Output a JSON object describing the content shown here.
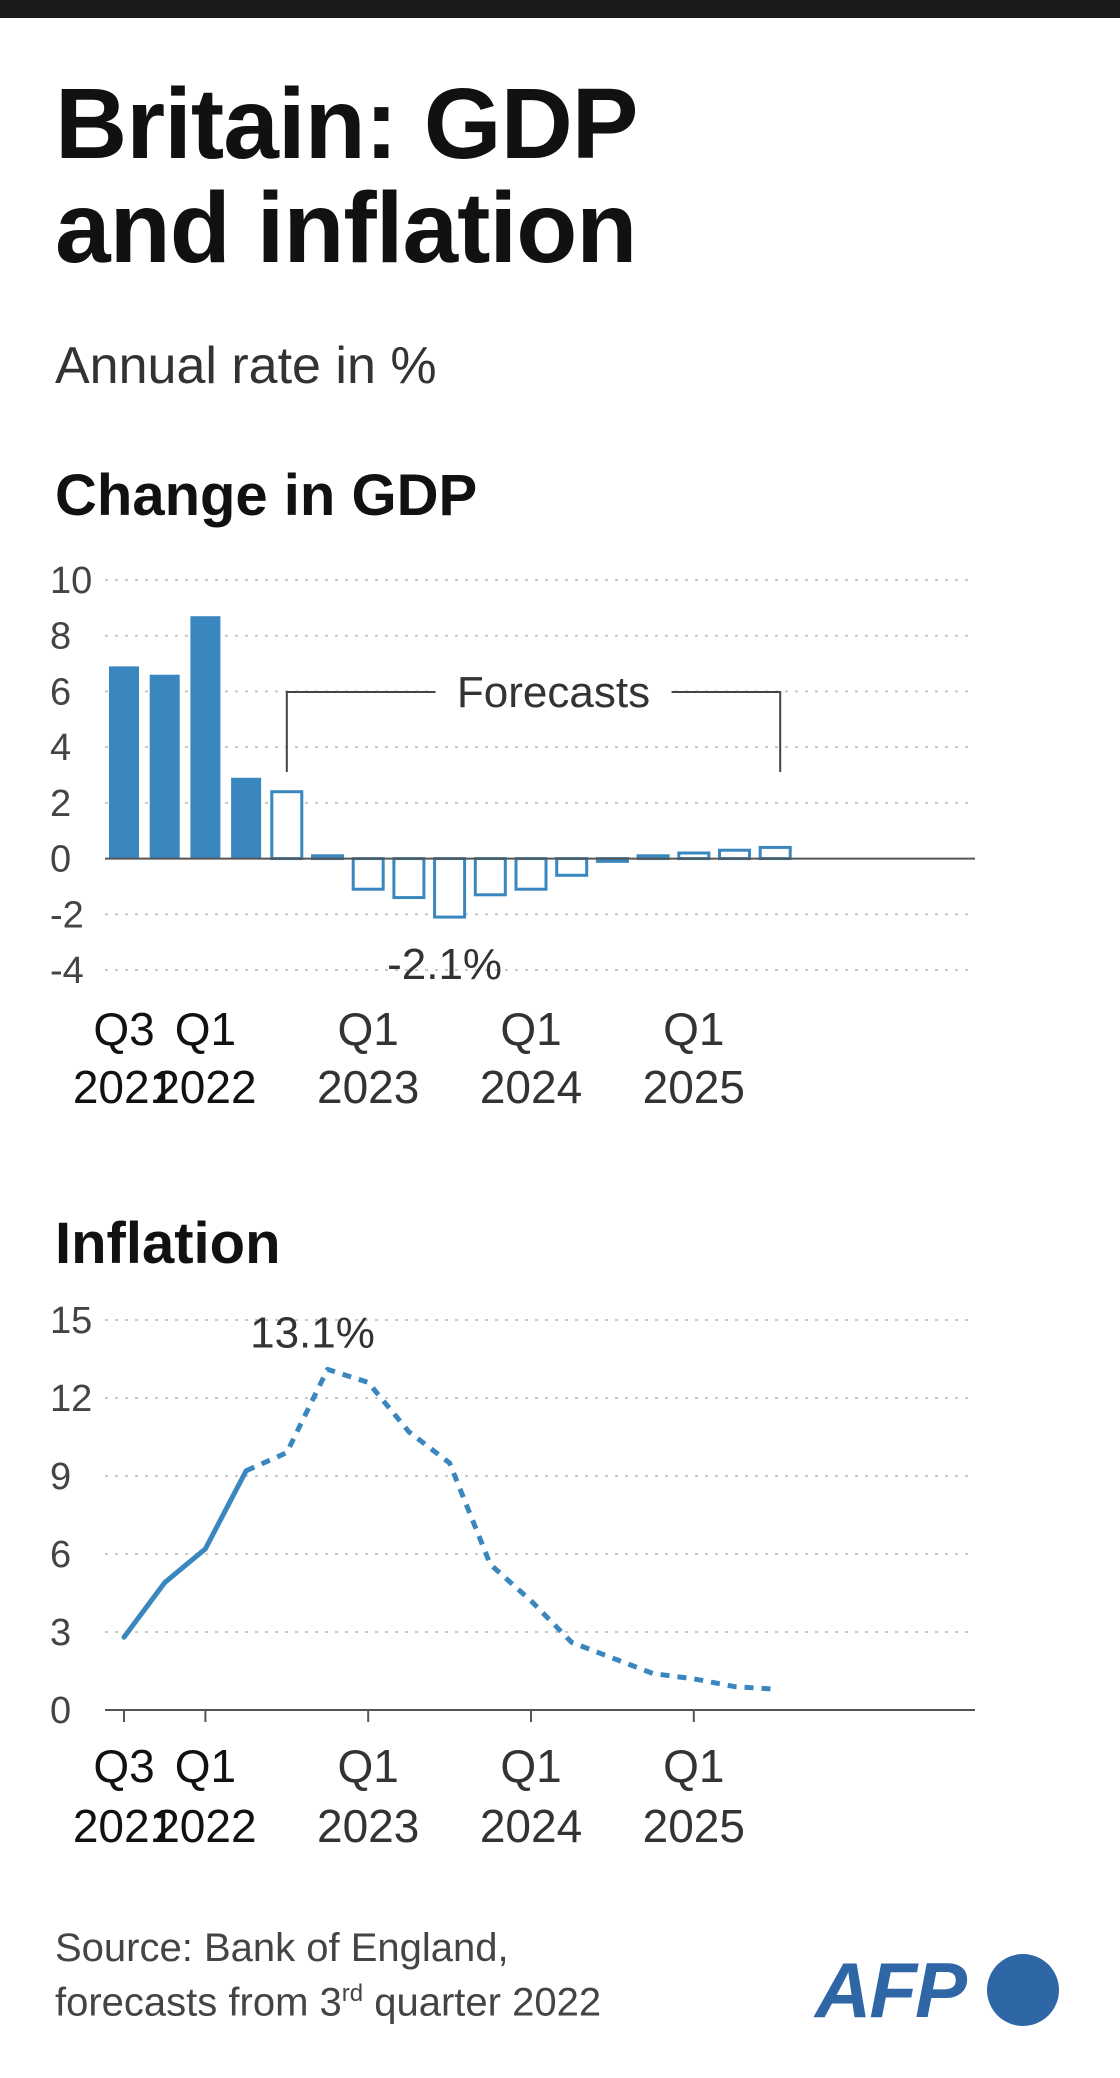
{
  "header": {
    "title_line1": "Britain: GDP",
    "title_line2": "and inflation",
    "subtitle": "Annual rate in %"
  },
  "colors": {
    "accent": "#3a87bf",
    "text": "#1a1a1a",
    "grid": "#c8c8c8",
    "logo": "#2e66a6"
  },
  "chart_data": [
    {
      "type": "bar",
      "title": "Change in GDP",
      "ylim": [
        -4,
        10
      ],
      "yticks": [
        "10",
        "8",
        "6",
        "4",
        "2",
        "0",
        "-2",
        "-4"
      ],
      "grid": true,
      "categories": [
        "Q3 2021",
        "Q4 2021",
        "Q1 2022",
        "Q2 2022",
        "Q3 2022",
        "Q4 2022",
        "Q1 2023",
        "Q2 2023",
        "Q3 2023",
        "Q4 2023",
        "Q1 2024",
        "Q2 2024",
        "Q3 2024",
        "Q4 2024",
        "Q1 2025",
        "Q2 2025",
        "Q3 2025"
      ],
      "values": [
        6.9,
        6.6,
        8.7,
        2.9,
        2.4,
        0.1,
        -1.1,
        -1.4,
        -2.1,
        -1.3,
        -1.1,
        -0.6,
        -0.1,
        0.1,
        0.2,
        0.3,
        0.4
      ],
      "forecast_from": "Q3 2022",
      "xtick_labels": [
        {
          "category": "Q3 2021",
          "line1": "Q3",
          "line2": "2021",
          "strong": true
        },
        {
          "category": "Q1 2022",
          "line1": "Q1",
          "line2": "2022",
          "strong": true
        },
        {
          "category": "Q1 2023",
          "line1": "Q1",
          "line2": "2023",
          "strong": false
        },
        {
          "category": "Q1 2024",
          "line1": "Q1",
          "line2": "2024",
          "strong": false
        },
        {
          "category": "Q1 2025",
          "line1": "Q1",
          "line2": "2025",
          "strong": false
        }
      ],
      "annotations": {
        "forecast_label": "Forecasts",
        "min_label": "-2.1%"
      }
    },
    {
      "type": "line",
      "title": "Inflation",
      "ylim": [
        0,
        15
      ],
      "yticks": [
        "15",
        "12",
        "9",
        "6",
        "3",
        "0"
      ],
      "grid": true,
      "categories": [
        "Q3 2021",
        "Q4 2021",
        "Q1 2022",
        "Q2 2022",
        "Q3 2022",
        "Q4 2022",
        "Q1 2023",
        "Q2 2023",
        "Q3 2023",
        "Q4 2023",
        "Q1 2024",
        "Q2 2024",
        "Q3 2024",
        "Q4 2024",
        "Q1 2025",
        "Q2 2025",
        "Q3 2025"
      ],
      "values": [
        2.8,
        4.9,
        6.2,
        9.2,
        9.9,
        13.1,
        12.6,
        10.7,
        9.5,
        5.6,
        4.2,
        2.6,
        2.0,
        1.4,
        1.2,
        0.9,
        0.8
      ],
      "forecast_from": "Q2 2022",
      "xtick_labels": [
        {
          "category": "Q3 2021",
          "line1": "Q3",
          "line2": "2021",
          "strong": true
        },
        {
          "category": "Q1 2022",
          "line1": "Q1",
          "line2": "2022",
          "strong": true
        },
        {
          "category": "Q1 2023",
          "line1": "Q1",
          "line2": "2023",
          "strong": false
        },
        {
          "category": "Q1 2024",
          "line1": "Q1",
          "line2": "2024",
          "strong": false
        },
        {
          "category": "Q1 2025",
          "line1": "Q1",
          "line2": "2025",
          "strong": false
        }
      ],
      "annotations": {
        "peak_label": "13.1%"
      }
    }
  ],
  "footer": {
    "source_line1": "Source: Bank of England,",
    "source_line2_prefix": "forecasts from 3",
    "source_line2_sup": "rd",
    "source_line2_suffix": " quarter 2022",
    "logo_text": "AFP"
  }
}
